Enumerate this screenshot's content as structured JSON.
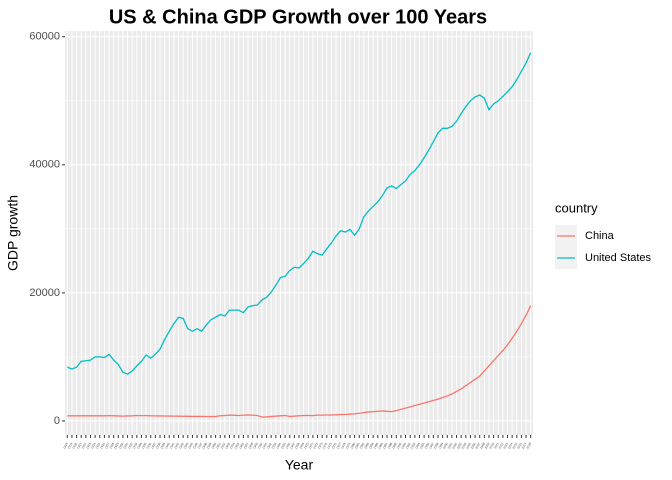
{
  "chart_data": {
    "type": "line",
    "title": "US & China GDP Growth over 100 Years",
    "x_label": "Year",
    "y_label": "GDP growth",
    "legend_title": "country",
    "categories": [
      "1918",
      "1919",
      "1920",
      "1921",
      "1922",
      "1923",
      "1924",
      "1925",
      "1926",
      "1927",
      "1928",
      "1929",
      "1930",
      "1931",
      "1932",
      "1933",
      "1934",
      "1935",
      "1936",
      "1937",
      "1938",
      "1939",
      "1940",
      "1941",
      "1942",
      "1943",
      "1944",
      "1945",
      "1946",
      "1947",
      "1948",
      "1949",
      "1950",
      "1951",
      "1952",
      "1953",
      "1954",
      "1955",
      "1956",
      "1957",
      "1958",
      "1959",
      "1960",
      "1961",
      "1962",
      "1963",
      "1964",
      "1965",
      "1966",
      "1967",
      "1968",
      "1969",
      "1970",
      "1971",
      "1972",
      "1973",
      "1974",
      "1975",
      "1976",
      "1977",
      "1978",
      "1979",
      "1980",
      "1981",
      "1982",
      "1983",
      "1984",
      "1985",
      "1986",
      "1987",
      "1988",
      "1989",
      "1990",
      "1991",
      "1992",
      "1993",
      "1994",
      "1995",
      "1996",
      "1997",
      "1998",
      "1999",
      "2000",
      "2001",
      "2002",
      "2003",
      "2004",
      "2005",
      "2006",
      "2007",
      "2008",
      "2009",
      "2010",
      "2011",
      "2012",
      "2013",
      "2014",
      "2015",
      "2016",
      "2017",
      "2018"
    ],
    "series": [
      {
        "name": "China",
        "color": "#F8766D",
        "values": [
          800,
          800,
          800,
          800,
          800,
          800,
          800,
          800,
          800,
          820,
          800,
          780,
          750,
          780,
          800,
          850,
          830,
          820,
          800,
          790,
          780,
          770,
          760,
          750,
          740,
          730,
          720,
          710,
          700,
          700,
          690,
          680,
          700,
          800,
          850,
          900,
          880,
          850,
          900,
          920,
          900,
          850,
          600,
          620,
          700,
          750,
          800,
          850,
          700,
          750,
          800,
          850,
          850,
          830,
          900,
          900,
          920,
          920,
          950,
          1000,
          1000,
          1050,
          1100,
          1200,
          1300,
          1400,
          1450,
          1500,
          1550,
          1500,
          1450,
          1600,
          1800,
          2000,
          2200,
          2400,
          2600,
          2800,
          3000,
          3200,
          3400,
          3650,
          3900,
          4200,
          4600,
          5000,
          5500,
          6000,
          6500,
          7000,
          7800,
          8600,
          9400,
          10200,
          11000,
          11900,
          12900,
          14000,
          15200,
          16500,
          18000
        ]
      },
      {
        "name": "United States",
        "color": "#00BFC4",
        "values": [
          8400,
          8100,
          8400,
          9300,
          9400,
          9500,
          10000,
          10000,
          9900,
          10400,
          9500,
          8800,
          7600,
          7300,
          7800,
          8600,
          9300,
          10300,
          9800,
          10400,
          11200,
          12700,
          14000,
          15200,
          16200,
          16000,
          14400,
          14000,
          14400,
          14000,
          15000,
          15800,
          16200,
          16600,
          16400,
          17300,
          17300,
          17300,
          16900,
          17800,
          18000,
          18100,
          18900,
          19300,
          20100,
          21200,
          22400,
          22600,
          23500,
          24000,
          23900,
          24600,
          25400,
          26500,
          26100,
          25900,
          26900,
          27800,
          28900,
          29700,
          29500,
          29900,
          29000,
          30000,
          31900,
          32800,
          33500,
          34200,
          35200,
          36400,
          36700,
          36300,
          36900,
          37500,
          38500,
          39100,
          40000,
          41100,
          42300,
          43600,
          45000,
          45700,
          45700,
          46000,
          46800,
          48000,
          49100,
          50000,
          50600,
          50900,
          50400,
          48600,
          49500,
          50000,
          50700,
          51400,
          52200,
          53300,
          54600,
          55900,
          57500
        ]
      }
    ],
    "ylim": [
      -2200,
      60900
    ],
    "yticks": [
      0,
      20000,
      40000,
      60000
    ],
    "grid": true,
    "legend": "right"
  }
}
